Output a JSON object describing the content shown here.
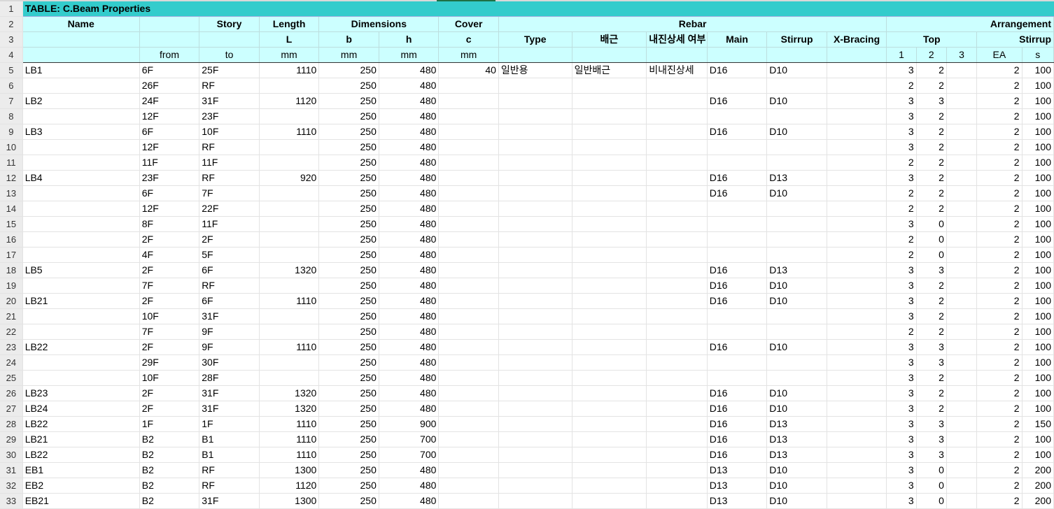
{
  "title": "TABLE: C.Beam Properties",
  "header_row2": [
    "Name",
    "",
    "Story",
    "Length",
    "Dimensions",
    "",
    "Cover",
    "",
    "",
    "Rebar",
    "",
    "",
    "",
    "",
    "",
    "Arrangement",
    "",
    ""
  ],
  "header_row3": [
    "",
    "",
    "",
    "L",
    "b",
    "h",
    "c",
    "Type",
    "배근",
    "내진상세 여부",
    "Main",
    "Stirrup",
    "X-Bracing",
    "",
    "Top",
    "",
    "Stirrup",
    ""
  ],
  "header_row4": [
    "",
    "from",
    "to",
    "mm",
    "mm",
    "mm",
    "mm",
    "",
    "",
    "",
    "",
    "",
    "",
    "1",
    "2",
    "3",
    "EA",
    "s"
  ],
  "row_numbers": [
    "1",
    "2",
    "3",
    "4",
    "5",
    "6",
    "7",
    "8",
    "9",
    "10",
    "11",
    "12",
    "13",
    "14",
    "15",
    "16",
    "17",
    "18",
    "19",
    "20",
    "21",
    "22",
    "23",
    "24",
    "25",
    "26",
    "27",
    "28",
    "29",
    "30",
    "31",
    "32",
    "33"
  ],
  "rows": [
    [
      "LB1",
      "6F",
      "25F",
      "1110",
      "250",
      "480",
      "40",
      "일반용",
      "일반배근",
      "비내진상세",
      "D16",
      "D10",
      "",
      "3",
      "2",
      "",
      "2",
      "100"
    ],
    [
      "",
      "26F",
      "RF",
      "",
      "250",
      "480",
      "",
      "",
      "",
      "",
      "",
      "",
      "",
      "2",
      "2",
      "",
      "2",
      "100"
    ],
    [
      "LB2",
      "24F",
      "31F",
      "1120",
      "250",
      "480",
      "",
      "",
      "",
      "",
      "D16",
      "D10",
      "",
      "3",
      "3",
      "",
      "2",
      "100"
    ],
    [
      "",
      "12F",
      "23F",
      "",
      "250",
      "480",
      "",
      "",
      "",
      "",
      "",
      "",
      "",
      "3",
      "2",
      "",
      "2",
      "100"
    ],
    [
      "LB3",
      "6F",
      "10F",
      "1110",
      "250",
      "480",
      "",
      "",
      "",
      "",
      "D16",
      "D10",
      "",
      "3",
      "2",
      "",
      "2",
      "100"
    ],
    [
      "",
      "12F",
      "RF",
      "",
      "250",
      "480",
      "",
      "",
      "",
      "",
      "",
      "",
      "",
      "3",
      "2",
      "",
      "2",
      "100"
    ],
    [
      "",
      "11F",
      "11F",
      "",
      "250",
      "480",
      "",
      "",
      "",
      "",
      "",
      "",
      "",
      "2",
      "2",
      "",
      "2",
      "100"
    ],
    [
      "LB4",
      "23F",
      "RF",
      "920",
      "250",
      "480",
      "",
      "",
      "",
      "",
      "D16",
      "D13",
      "",
      "3",
      "2",
      "",
      "2",
      "100"
    ],
    [
      "",
      "6F",
      "7F",
      "",
      "250",
      "480",
      "",
      "",
      "",
      "",
      "D16",
      "D10",
      "",
      "2",
      "2",
      "",
      "2",
      "100"
    ],
    [
      "",
      "12F",
      "22F",
      "",
      "250",
      "480",
      "",
      "",
      "",
      "",
      "",
      "",
      "",
      "2",
      "2",
      "",
      "2",
      "100"
    ],
    [
      "",
      "8F",
      "11F",
      "",
      "250",
      "480",
      "",
      "",
      "",
      "",
      "",
      "",
      "",
      "3",
      "0",
      "",
      "2",
      "100"
    ],
    [
      "",
      "2F",
      "2F",
      "",
      "250",
      "480",
      "",
      "",
      "",
      "",
      "",
      "",
      "",
      "2",
      "0",
      "",
      "2",
      "100"
    ],
    [
      "",
      "4F",
      "5F",
      "",
      "250",
      "480",
      "",
      "",
      "",
      "",
      "",
      "",
      "",
      "2",
      "0",
      "",
      "2",
      "100"
    ],
    [
      "LB5",
      "2F",
      "6F",
      "1320",
      "250",
      "480",
      "",
      "",
      "",
      "",
      "D16",
      "D13",
      "",
      "3",
      "3",
      "",
      "2",
      "100"
    ],
    [
      "",
      "7F",
      "RF",
      "",
      "250",
      "480",
      "",
      "",
      "",
      "",
      "D16",
      "D10",
      "",
      "3",
      "2",
      "",
      "2",
      "100"
    ],
    [
      "LB21",
      "2F",
      "6F",
      "1110",
      "250",
      "480",
      "",
      "",
      "",
      "",
      "D16",
      "D10",
      "",
      "3",
      "2",
      "",
      "2",
      "100"
    ],
    [
      "",
      "10F",
      "31F",
      "",
      "250",
      "480",
      "",
      "",
      "",
      "",
      "",
      "",
      "",
      "3",
      "2",
      "",
      "2",
      "100"
    ],
    [
      "",
      "7F",
      "9F",
      "",
      "250",
      "480",
      "",
      "",
      "",
      "",
      "",
      "",
      "",
      "2",
      "2",
      "",
      "2",
      "100"
    ],
    [
      "LB22",
      "2F",
      "9F",
      "1110",
      "250",
      "480",
      "",
      "",
      "",
      "",
      "D16",
      "D10",
      "",
      "3",
      "3",
      "",
      "2",
      "100"
    ],
    [
      "",
      "29F",
      "30F",
      "",
      "250",
      "480",
      "",
      "",
      "",
      "",
      "",
      "",
      "",
      "3",
      "3",
      "",
      "2",
      "100"
    ],
    [
      "",
      "10F",
      "28F",
      "",
      "250",
      "480",
      "",
      "",
      "",
      "",
      "",
      "",
      "",
      "3",
      "2",
      "",
      "2",
      "100"
    ],
    [
      "LB23",
      "2F",
      "31F",
      "1320",
      "250",
      "480",
      "",
      "",
      "",
      "",
      "D16",
      "D10",
      "",
      "3",
      "2",
      "",
      "2",
      "100"
    ],
    [
      "LB24",
      "2F",
      "31F",
      "1320",
      "250",
      "480",
      "",
      "",
      "",
      "",
      "D16",
      "D10",
      "",
      "3",
      "2",
      "",
      "2",
      "100"
    ],
    [
      "LB22",
      "1F",
      "1F",
      "1110",
      "250",
      "900",
      "",
      "",
      "",
      "",
      "D16",
      "D13",
      "",
      "3",
      "3",
      "",
      "2",
      "150"
    ],
    [
      "LB21",
      "B2",
      "B1",
      "1110",
      "250",
      "700",
      "",
      "",
      "",
      "",
      "D16",
      "D13",
      "",
      "3",
      "3",
      "",
      "2",
      "100"
    ],
    [
      "LB22",
      "B2",
      "B1",
      "1110",
      "250",
      "700",
      "",
      "",
      "",
      "",
      "D16",
      "D13",
      "",
      "3",
      "3",
      "",
      "2",
      "100"
    ],
    [
      "EB1",
      "B2",
      "RF",
      "1300",
      "250",
      "480",
      "",
      "",
      "",
      "",
      "D13",
      "D10",
      "",
      "3",
      "0",
      "",
      "2",
      "200"
    ],
    [
      "EB2",
      "B2",
      "RF",
      "1120",
      "250",
      "480",
      "",
      "",
      "",
      "",
      "D13",
      "D10",
      "",
      "3",
      "0",
      "",
      "2",
      "200"
    ],
    [
      "EB21",
      "B2",
      "31F",
      "1300",
      "250",
      "480",
      "",
      "",
      "",
      "",
      "D13",
      "D10",
      "",
      "3",
      "0",
      "",
      "2",
      "200"
    ]
  ],
  "colors": {
    "title_fill": "#33cccc",
    "header_fill": "#ccffff",
    "selected_column": "#1e7145"
  }
}
